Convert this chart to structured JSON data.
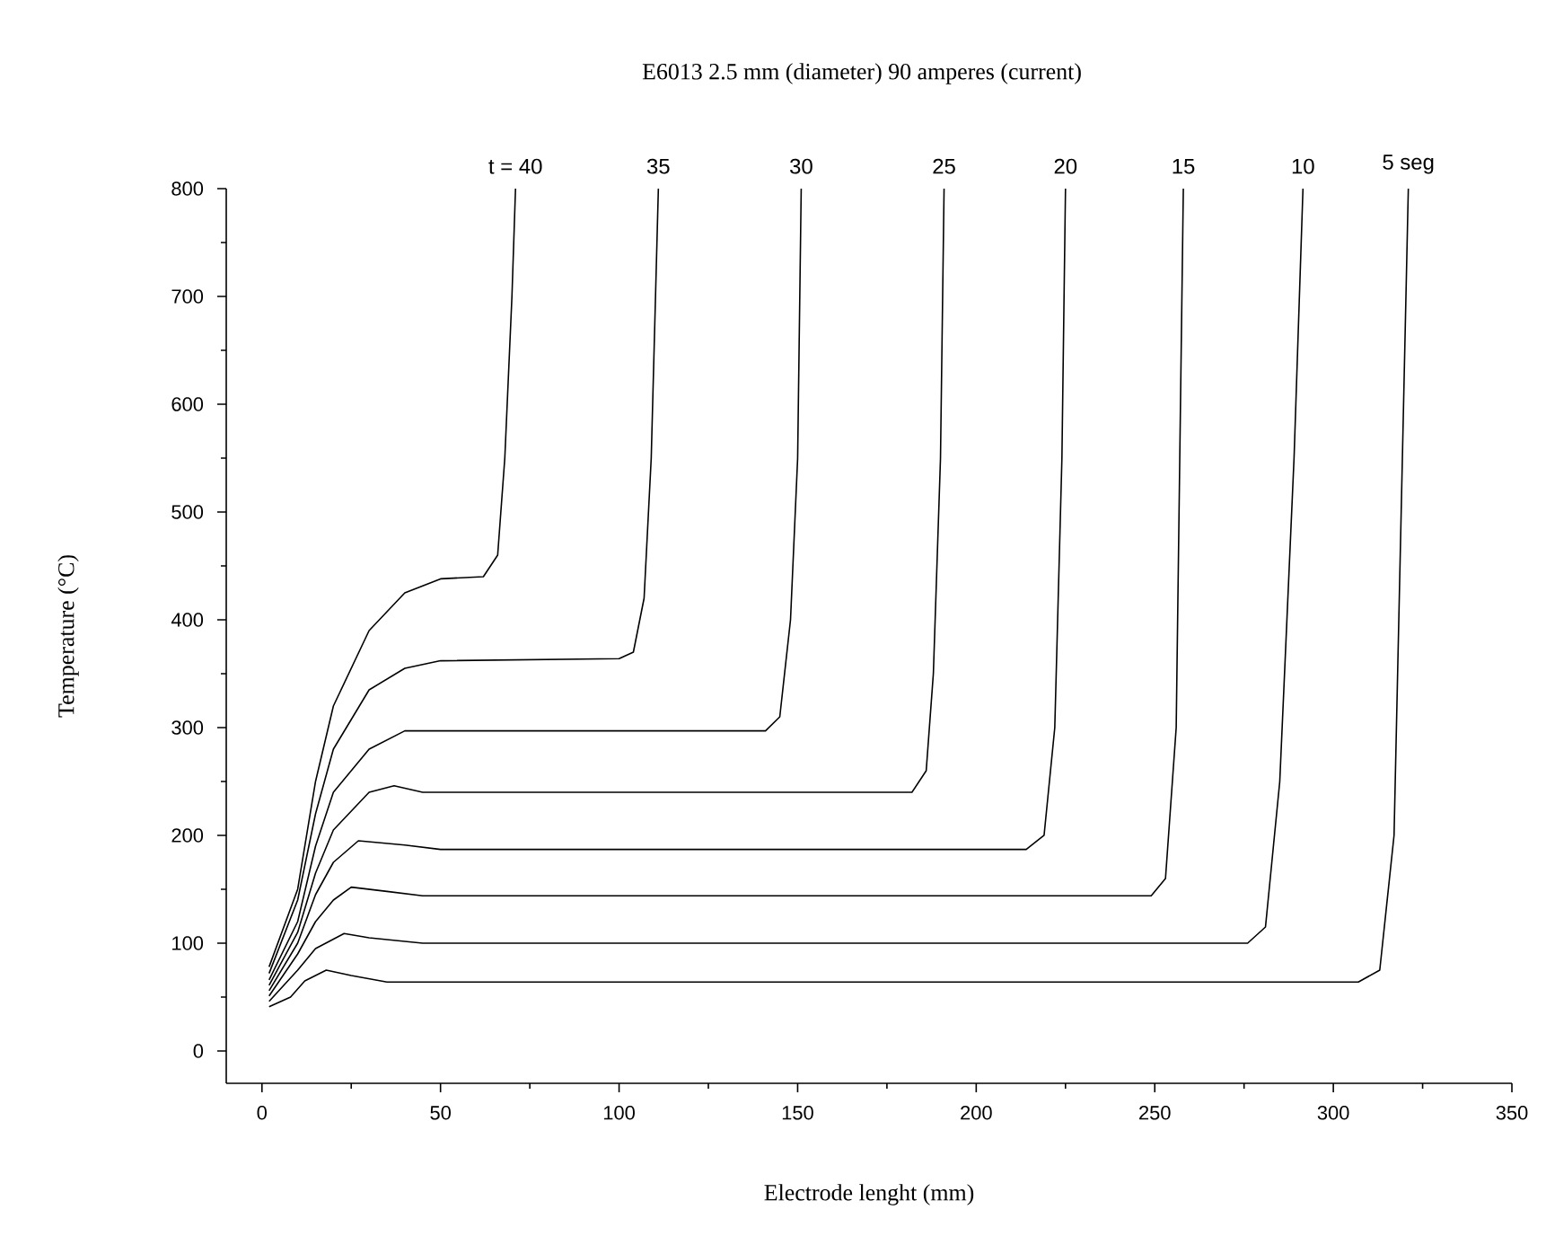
{
  "chart_data": {
    "type": "line",
    "title": "E6013    2.5 mm (diameter)    90 amperes (current)",
    "xlabel": "Electrode lenght (mm)",
    "ylabel": "Temperature (°C)",
    "xlim": [
      -10,
      350
    ],
    "ylim": [
      -30,
      800
    ],
    "xticks": [
      0,
      50,
      100,
      150,
      200,
      250,
      300,
      350
    ],
    "yticks": [
      0,
      100,
      200,
      300,
      400,
      500,
      600,
      700,
      800
    ],
    "grid": false,
    "marker": "none",
    "line_style": "solid",
    "series": [
      {
        "color": "#000000",
        "x": [
          2,
          10,
          15,
          20,
          30,
          40,
          50,
          62,
          66,
          68,
          70,
          71
        ],
        "values": [
          78,
          150,
          250,
          320,
          390,
          425,
          438,
          440,
          460,
          550,
          700,
          800
        ]
      },
      {
        "color": "#000000",
        "x": [
          2,
          10,
          15,
          20,
          30,
          40,
          50,
          100,
          104,
          107,
          109,
          111
        ],
        "values": [
          72,
          140,
          220,
          280,
          335,
          355,
          362,
          364,
          370,
          420,
          550,
          800
        ]
      },
      {
        "color": "#000000",
        "x": [
          2,
          10,
          15,
          20,
          30,
          40,
          60,
          141,
          145,
          148,
          150,
          151
        ],
        "values": [
          66,
          120,
          190,
          240,
          280,
          297,
          297,
          297,
          310,
          400,
          550,
          800
        ]
      },
      {
        "color": "#000000",
        "x": [
          2,
          10,
          15,
          20,
          30,
          37,
          45,
          182,
          186,
          188,
          190,
          191
        ],
        "values": [
          61,
          110,
          165,
          205,
          240,
          246,
          240,
          240,
          260,
          350,
          550,
          800
        ]
      },
      {
        "color": "#000000",
        "x": [
          2,
          10,
          15,
          20,
          27,
          40,
          50,
          214,
          219,
          222,
          224,
          225
        ],
        "values": [
          56,
          100,
          145,
          175,
          195,
          191,
          187,
          187,
          200,
          300,
          550,
          800
        ]
      },
      {
        "color": "#000000",
        "x": [
          2,
          10,
          15,
          20,
          25,
          35,
          45,
          249,
          253,
          256,
          258
        ],
        "values": [
          51,
          90,
          120,
          140,
          152,
          148,
          144,
          144,
          160,
          300,
          800
        ]
      },
      {
        "color": "#000000",
        "x": [
          2,
          10,
          15,
          23,
          30,
          45,
          276,
          281,
          285,
          289,
          291.5
        ],
        "values": [
          46,
          75,
          95,
          109,
          105,
          100,
          100,
          115,
          250,
          550,
          800
        ]
      },
      {
        "color": "#000000",
        "x": [
          2,
          8,
          12,
          18,
          25,
          35,
          307,
          313,
          317,
          319,
          321
        ],
        "values": [
          41,
          50,
          65,
          75,
          70,
          64,
          64,
          75,
          200,
          500,
          800
        ]
      }
    ],
    "annotations": [
      {
        "text": "t = 40",
        "x": 71,
        "y": 800
      },
      {
        "text": "35",
        "x": 111,
        "y": 800
      },
      {
        "text": "30",
        "x": 151,
        "y": 800
      },
      {
        "text": "25",
        "x": 191,
        "y": 800
      },
      {
        "text": "20",
        "x": 225,
        "y": 800
      },
      {
        "text": "15",
        "x": 258,
        "y": 800
      },
      {
        "text": "10",
        "x": 291.5,
        "y": 800
      },
      {
        "text": "5 seg",
        "x": 321,
        "y": 800
      }
    ]
  }
}
